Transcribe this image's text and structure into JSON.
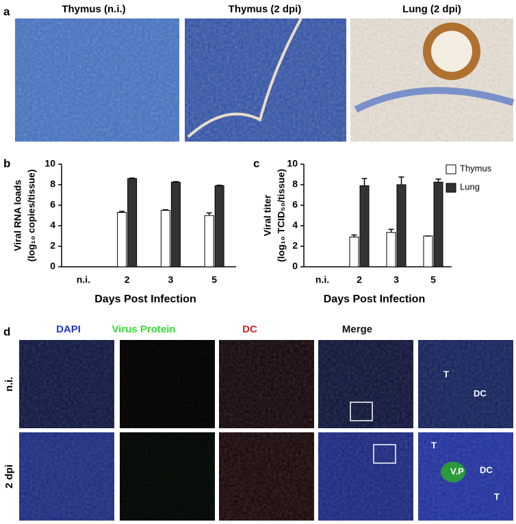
{
  "panel_a": {
    "label": "a",
    "titles": [
      "Thymus (n.i.)",
      "Thymus (2 dpi)",
      "Lung (2 dpi)"
    ]
  },
  "chart_data": [
    {
      "type": "bar",
      "panel_label": "b",
      "ylabel": [
        "Viral RNA loads",
        "(log₁₀ copies/tissue)"
      ],
      "xlabel": "Days Post Infection",
      "categories": [
        "n.i.",
        "2",
        "3",
        "5"
      ],
      "ylim": [
        0,
        10
      ],
      "yticks": [
        0,
        2,
        4,
        6,
        8,
        10
      ],
      "legend": false,
      "series": [
        {
          "color": "#ffffff",
          "values": [
            null,
            5.3,
            5.5,
            5.0
          ],
          "errors": [
            null,
            0.1,
            0.05,
            0.25
          ]
        },
        {
          "color": "#333333",
          "values": [
            null,
            8.6,
            8.25,
            7.9
          ],
          "errors": [
            null,
            0.05,
            0.05,
            0.05
          ]
        }
      ]
    },
    {
      "type": "bar",
      "panel_label": "c",
      "ylabel": [
        "Viral titer",
        "(log₁₀ TCID₅₀/tissue)"
      ],
      "xlabel": "Days Post Infection",
      "categories": [
        "n.i.",
        "2",
        "3",
        "5"
      ],
      "ylim": [
        0,
        10
      ],
      "yticks": [
        0,
        2,
        4,
        6,
        8,
        10
      ],
      "legend": true,
      "series": [
        {
          "name": "Thymus",
          "color": "#ffffff",
          "values": [
            null,
            2.9,
            3.35,
            3.0
          ],
          "errors": [
            null,
            0.2,
            0.3,
            0
          ]
        },
        {
          "name": "Lung",
          "color": "#333333",
          "values": [
            null,
            7.9,
            8.0,
            8.25
          ],
          "errors": [
            null,
            0.7,
            0.75,
            0.3
          ]
        }
      ]
    }
  ],
  "panel_d": {
    "label": "d",
    "columns": [
      {
        "text": "DAPI",
        "color": "#2233cc"
      },
      {
        "text": "Virus Protein",
        "color": "#33dd33"
      },
      {
        "text": "DC",
        "color": "#dd2222"
      },
      {
        "text": "Merge",
        "color": "#111111"
      }
    ],
    "rows": [
      "n.i.",
      "2 dpi"
    ],
    "annotations": [
      [
        "T",
        "DC"
      ],
      [
        "T",
        "V.P",
        "DC",
        "T"
      ]
    ]
  }
}
